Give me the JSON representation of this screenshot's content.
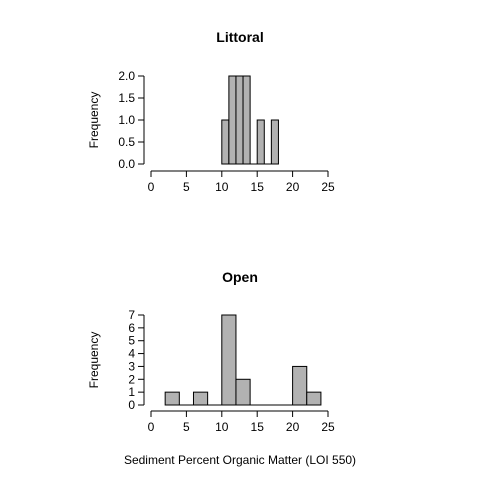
{
  "chart_data": [
    {
      "type": "bar",
      "title": "Littoral",
      "ylabel": "Frequency",
      "xlabel": "",
      "xlim": [
        0,
        25
      ],
      "ylim": [
        0,
        2
      ],
      "x_ticks": [
        "0",
        "5",
        "10",
        "15",
        "20",
        "25"
      ],
      "y_ticks": [
        "0.0",
        "0.5",
        "1.0",
        "1.5",
        "2.0"
      ],
      "bins": [
        {
          "x0": 10,
          "x1": 11,
          "count": 1
        },
        {
          "x0": 11,
          "x1": 12,
          "count": 2
        },
        {
          "x0": 12,
          "x1": 13,
          "count": 2
        },
        {
          "x0": 13,
          "x1": 14,
          "count": 2
        },
        {
          "x0": 14,
          "x1": 15,
          "count": 0
        },
        {
          "x0": 15,
          "x1": 16,
          "count": 1
        },
        {
          "x0": 16,
          "x1": 17,
          "count": 0
        },
        {
          "x0": 17,
          "x1": 18,
          "count": 1
        }
      ]
    },
    {
      "type": "bar",
      "title": "Open",
      "ylabel": "Frequency",
      "xlabel": "Sediment Percent Organic Matter (LOI 550)",
      "xlim": [
        0,
        25
      ],
      "ylim": [
        0,
        7
      ],
      "x_ticks": [
        "0",
        "5",
        "10",
        "15",
        "20",
        "25"
      ],
      "y_ticks": [
        "0",
        "1",
        "2",
        "3",
        "4",
        "5",
        "6",
        "7"
      ],
      "bins": [
        {
          "x0": 2,
          "x1": 4,
          "count": 1
        },
        {
          "x0": 4,
          "x1": 6,
          "count": 0
        },
        {
          "x0": 6,
          "x1": 8,
          "count": 1
        },
        {
          "x0": 8,
          "x1": 10,
          "count": 0
        },
        {
          "x0": 10,
          "x1": 12,
          "count": 7
        },
        {
          "x0": 12,
          "x1": 14,
          "count": 2
        },
        {
          "x0": 14,
          "x1": 16,
          "count": 0
        },
        {
          "x0": 16,
          "x1": 18,
          "count": 0
        },
        {
          "x0": 18,
          "x1": 20,
          "count": 0
        },
        {
          "x0": 20,
          "x1": 22,
          "count": 3
        },
        {
          "x0": 22,
          "x1": 24,
          "count": 1
        }
      ]
    }
  ]
}
